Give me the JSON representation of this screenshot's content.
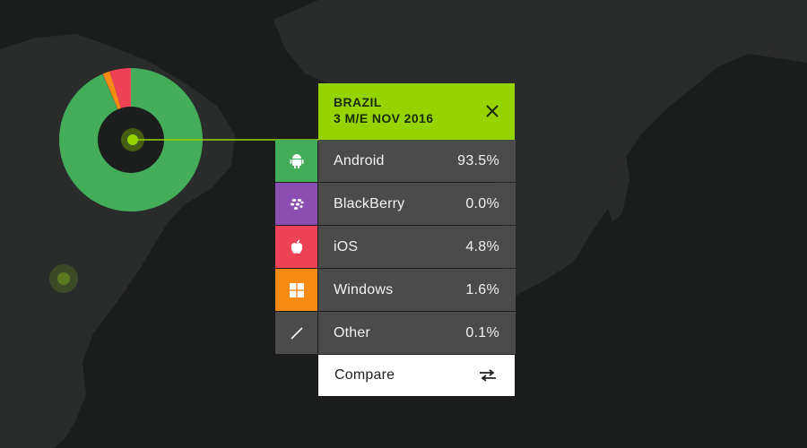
{
  "popup": {
    "country": "BRAZIL",
    "period": "3 M/E NOV 2016",
    "rows": [
      {
        "name": "Android",
        "value": "93.5%",
        "color": "#43ad5a",
        "icon": "android-icon"
      },
      {
        "name": "BlackBerry",
        "value": "0.0%",
        "color": "#8b4fb1",
        "icon": "blackberry-icon"
      },
      {
        "name": "iOS",
        "value": "4.8%",
        "color": "#ee4256",
        "icon": "apple-icon"
      },
      {
        "name": "Windows",
        "value": "1.6%",
        "color": "#f68a12",
        "icon": "windows-icon"
      },
      {
        "name": "Other",
        "value": "0.1%",
        "color": "#4b4b4b",
        "icon": "slash-icon"
      }
    ],
    "compare_label": "Compare"
  },
  "colors": {
    "accent": "#96d400",
    "map_land": "#2a2b2b",
    "background": "#1b1c1c"
  }
}
